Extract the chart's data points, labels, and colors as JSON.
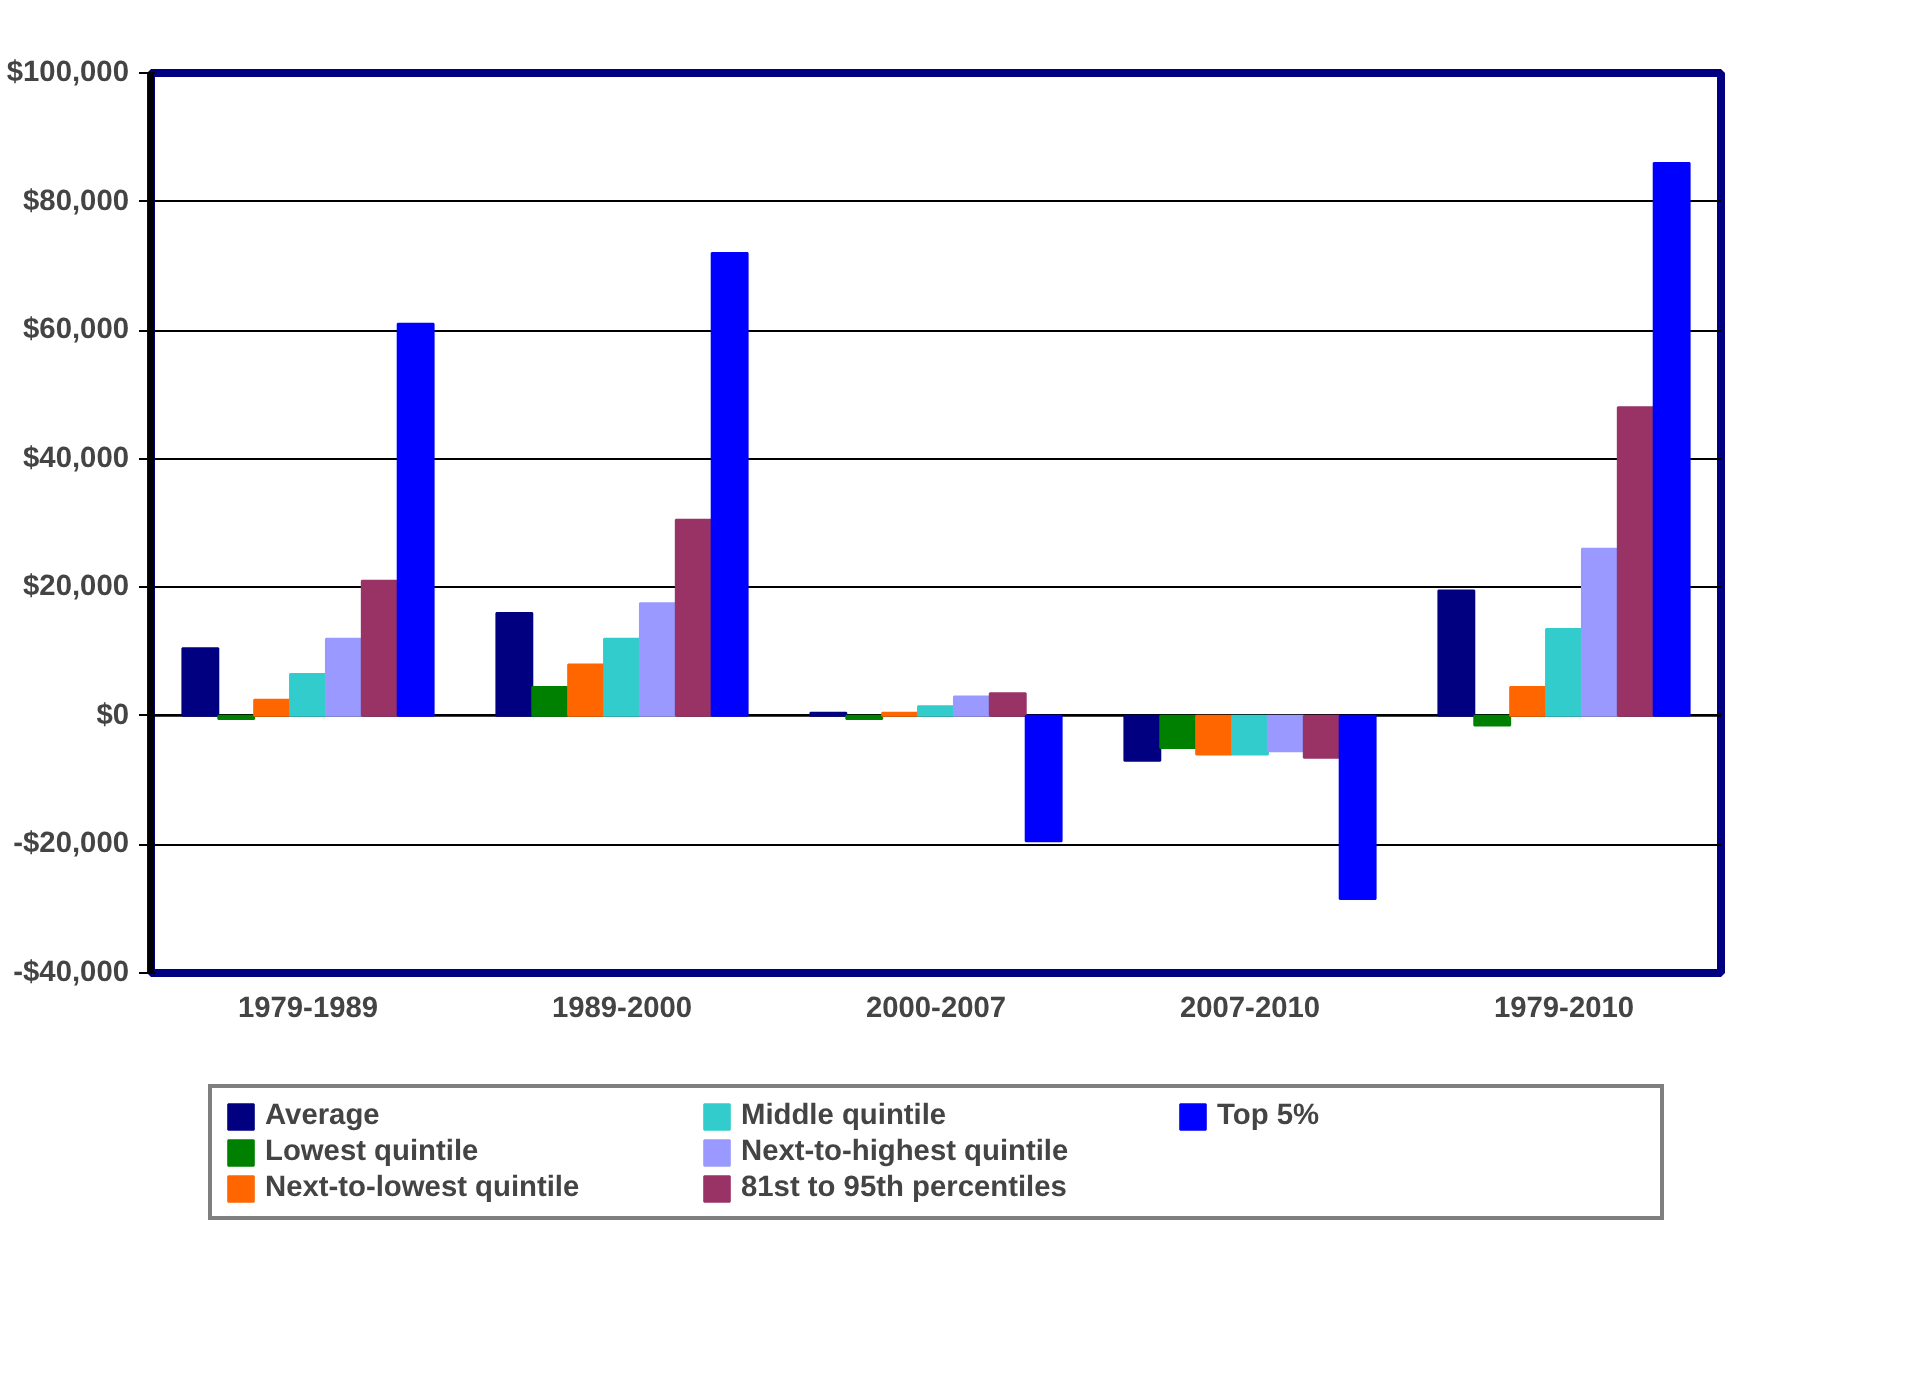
{
  "chart_data": {
    "type": "bar",
    "categories": [
      "1979-1989",
      "1989-2000",
      "2000-2007",
      "2007-2010",
      "1979-2010"
    ],
    "series": [
      {
        "name": "Average",
        "color": "#000080",
        "values": [
          10500,
          16000,
          500,
          -7000,
          19500
        ]
      },
      {
        "name": "Lowest quintile",
        "color": "#008000",
        "values": [
          -500,
          4500,
          -500,
          -5000,
          -1500
        ]
      },
      {
        "name": "Next-to-lowest quintile",
        "color": "#ff6600",
        "values": [
          2500,
          8000,
          500,
          -6000,
          4500
        ]
      },
      {
        "name": "Middle quintile",
        "color": "#33cccc",
        "values": [
          6500,
          12000,
          1500,
          -6000,
          13500
        ]
      },
      {
        "name": "Next-to-highest quintile",
        "color": "#9999ff",
        "values": [
          12000,
          17500,
          3000,
          -5500,
          26000
        ]
      },
      {
        "name": "81st to 95th percentiles",
        "color": "#993366",
        "values": [
          21000,
          30500,
          3500,
          -6500,
          48000
        ]
      },
      {
        "name": "Top 5%",
        "color": "#0000ff",
        "values": [
          61000,
          72000,
          -19500,
          -28500,
          86000
        ]
      }
    ],
    "ylim": [
      -40000,
      100000
    ],
    "yticks": [
      {
        "value": -40000,
        "label": "-$40,000"
      },
      {
        "value": -20000,
        "label": "-$20,000"
      },
      {
        "value": 0,
        "label": "$0"
      },
      {
        "value": 20000,
        "label": "$20,000"
      },
      {
        "value": 40000,
        "label": "$40,000"
      },
      {
        "value": 60000,
        "label": "$60,000"
      },
      {
        "value": 80000,
        "label": "$80,000"
      },
      {
        "value": 100000,
        "label": "$100,000"
      }
    ],
    "grid": "y",
    "legend": "bottom"
  }
}
